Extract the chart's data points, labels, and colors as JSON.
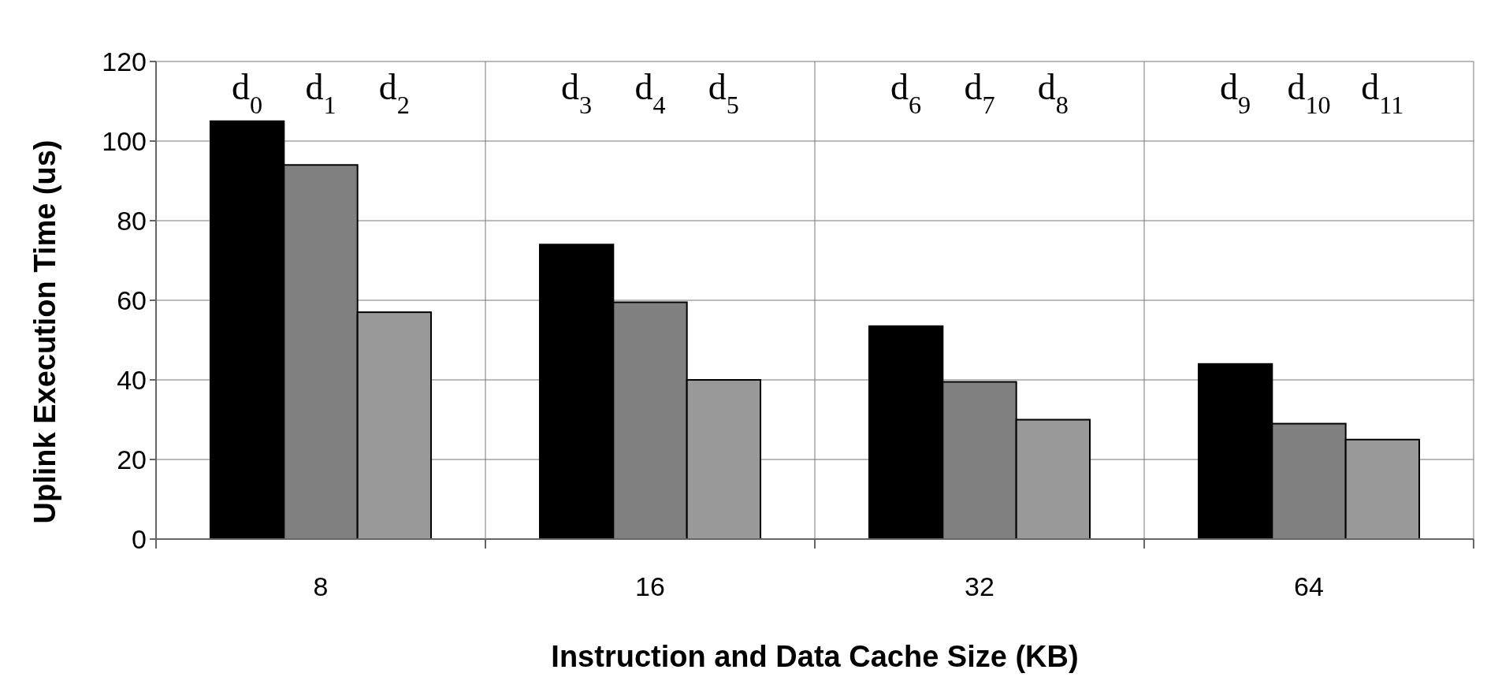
{
  "chart_data": {
    "type": "bar",
    "xlabel": "Instruction and Data Cache Size (KB)",
    "ylabel": "Uplink Execution Time (us)",
    "categories": [
      "8",
      "16",
      "32",
      "64"
    ],
    "series": [
      {
        "color": "#000000",
        "values": [
          105,
          74,
          53.5,
          44
        ]
      },
      {
        "color": "#808080",
        "values": [
          94,
          59.5,
          39.5,
          29
        ]
      },
      {
        "color": "#999999",
        "values": [
          57,
          40,
          30,
          25
        ]
      }
    ],
    "annotations": [
      "d$_{0}$",
      "d$_{1}$",
      "d$_{2}$",
      "d$_{3}$",
      "d$_{4}$",
      "d$_{5}$",
      "d$_{6}$",
      "d$_{7}$",
      "d$_{8}$",
      "d$_{9}$",
      "d$_{10}$",
      "d$_{11}$"
    ],
    "ylim": [
      0,
      120
    ],
    "yticks": [
      0,
      20,
      40,
      60,
      80,
      100,
      120
    ],
    "grid": true
  }
}
